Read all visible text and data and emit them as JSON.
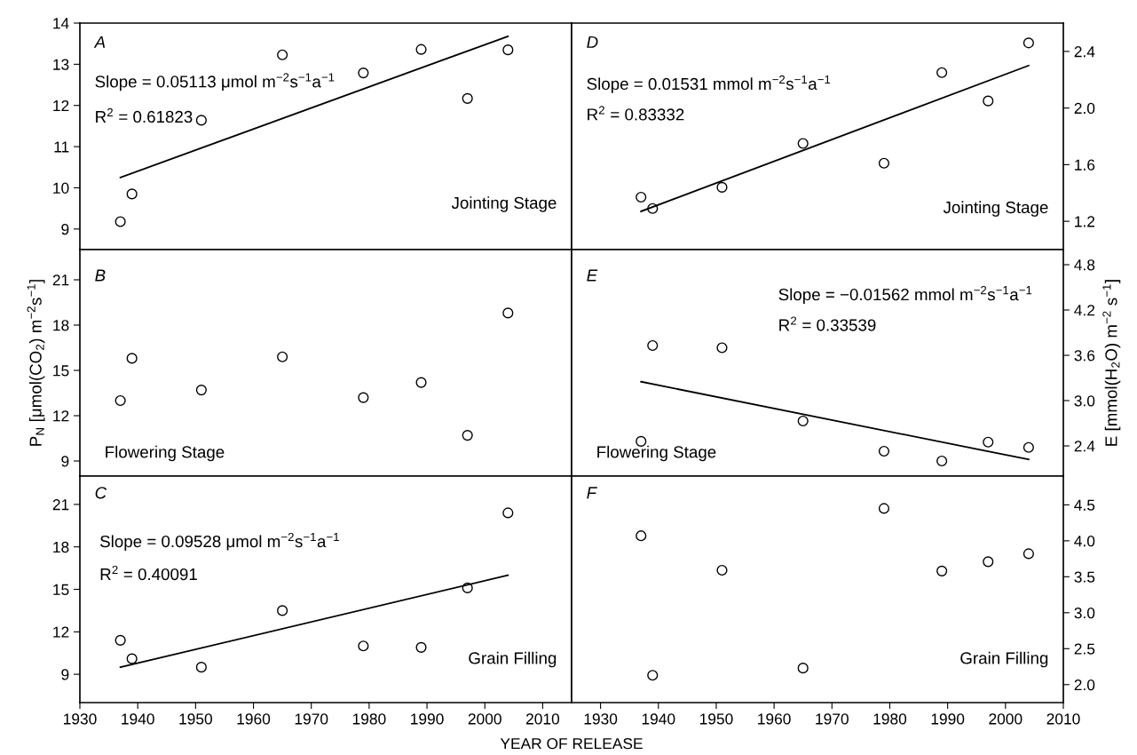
{
  "chart_data": [
    {
      "type": "scatter",
      "xlim": [
        1930,
        2015
      ],
      "xticks": [
        1930,
        1940,
        1950,
        1960,
        1970,
        1980,
        1990,
        2000,
        2010
      ],
      "ylim": [
        8.5,
        14
      ],
      "yticks": [
        9,
        10,
        11,
        12,
        13,
        14
      ],
      "tick_labels": "y",
      "grid": false,
      "series": [
        {
          "marker": "circle",
          "color": "#000000",
          "x": [
            1937,
            1939,
            1951,
            1965,
            1979,
            1989,
            1997,
            2004
          ],
          "values": [
            9.18,
            9.85,
            11.64,
            13.23,
            12.79,
            13.36,
            12.17,
            13.35
          ]
        },
        {
          "type": "line",
          "color": "#000000",
          "x": [
            1937,
            2004
          ],
          "values": [
            10.25,
            13.68
          ]
        }
      ],
      "annotations": [
        "A",
        "Slope = 0.05113 μmol m$^{−2}$s$^{−1}$a$^{−1}$",
        "R$^{2}$ = 0.61823",
        "Jointing Stage"
      ]
    },
    {
      "type": "scatter",
      "xlim": [
        1925,
        2010
      ],
      "xticks": [
        1930,
        1940,
        1950,
        1960,
        1970,
        1980,
        1990,
        2000,
        2010
      ],
      "ylim": [
        1.0,
        2.6
      ],
      "yticks": [
        {
          "value": 1.2,
          "label": "1.2"
        },
        {
          "value": 1.6,
          "label": "1.6"
        },
        {
          "value": 2.0,
          "label": "2.0"
        },
        {
          "value": 2.4,
          "label": "2.4"
        }
      ],
      "tick_labels": "y",
      "grid": false,
      "series": [
        {
          "marker": "circle",
          "color": "#000000",
          "x": [
            1937,
            1939,
            1951,
            1965,
            1979,
            1989,
            1997,
            2004
          ],
          "values": [
            1.37,
            1.29,
            1.44,
            1.75,
            1.61,
            2.25,
            2.05,
            2.46
          ]
        },
        {
          "type": "line",
          "color": "#000000",
          "x": [
            1937,
            2004
          ],
          "values": [
            1.27,
            2.3
          ]
        }
      ],
      "annotations": [
        "D",
        "Slope = 0.01531 mmol m$^{−2}$s$^{−1}$a$^{−1}$",
        "R$^{2}$ = 0.83332",
        "Jointing Stage"
      ]
    },
    {
      "type": "scatter",
      "xlim": [
        1930,
        2015
      ],
      "xticks": [
        1930,
        1940,
        1950,
        1960,
        1970,
        1980,
        1990,
        2000,
        2010
      ],
      "ylim": [
        8,
        23
      ],
      "yticks": [
        9,
        12,
        15,
        18,
        21
      ],
      "tick_labels": "y",
      "grid": false,
      "marker": "circle",
      "ylabel": "P$_{N}$ [μmol(CO$_{2}$) m$^{−2}$s$^{−1}$]",
      "series": [
        {
          "color": "#000000",
          "x": [
            1937,
            1939,
            1951,
            1965,
            1979,
            1989,
            1997,
            2004
          ],
          "values": [
            13.0,
            15.8,
            13.7,
            15.9,
            13.2,
            14.2,
            10.7,
            18.8
          ]
        }
      ],
      "annotations": [
        "B",
        "Flowering Stage"
      ]
    },
    {
      "type": "scatter",
      "xlim": [
        1925,
        2010
      ],
      "xticks": [
        1930,
        1940,
        1950,
        1960,
        1970,
        1980,
        1990,
        2000,
        2010
      ],
      "ylim": [
        2.0,
        5.0
      ],
      "yticks": [
        {
          "value": 2.4,
          "label": "2.4"
        },
        {
          "value": 3.0,
          "label": "3.0"
        },
        {
          "value": 3.6,
          "label": "3.6"
        },
        {
          "value": 4.2,
          "label": "4.2"
        },
        {
          "value": 4.8,
          "label": "4.8"
        }
      ],
      "tick_labels": "y",
      "grid": false,
      "ylabel": "E [mmol(H$_{2}$O) m$^{−2}$ s$^{−1}$]",
      "series": [
        {
          "marker": "circle",
          "color": "#000000",
          "x": [
            1937,
            1939,
            1951,
            1965,
            1979,
            1989,
            1997,
            2004
          ],
          "values": [
            2.46,
            3.73,
            3.7,
            2.73,
            2.33,
            2.2,
            2.45,
            2.38
          ]
        },
        {
          "type": "line",
          "color": "#000000",
          "x": [
            1937,
            2004
          ],
          "values": [
            3.25,
            2.22
          ]
        }
      ],
      "annotations": [
        "E",
        "Slope = −0.01562 mmol m$^{−2}$s$^{−1}$a$^{−1}$",
        "R$^{2}$ = 0.33539",
        "Flowering Stage"
      ]
    },
    {
      "type": "scatter",
      "xlim": [
        1930,
        2015
      ],
      "xticks": [
        1930,
        1940,
        1950,
        1960,
        1970,
        1980,
        1990,
        2000,
        2010
      ],
      "ylim": [
        7,
        23
      ],
      "yticks": [
        9,
        12,
        15,
        18,
        21
      ],
      "grid": false,
      "xlabel": "YEAR OF RELEASE",
      "series": [
        {
          "marker": "circle",
          "color": "#000000",
          "x": [
            1937,
            1939,
            1951,
            1965,
            1979,
            1989,
            1997,
            2004
          ],
          "values": [
            11.4,
            10.1,
            9.5,
            13.5,
            11.0,
            10.9,
            15.1,
            20.4
          ]
        },
        {
          "type": "line",
          "color": "#000000",
          "x": [
            1937,
            2004
          ],
          "values": [
            9.5,
            16.0
          ]
        }
      ],
      "annotations": [
        "C",
        "Slope = 0.09528 μmol m$^{−2}$s$^{−1}$a$^{−1}$",
        "R$^{2}$ = 0.40091",
        "Grain Filling"
      ]
    },
    {
      "type": "scatter",
      "xlim": [
        1925,
        2010
      ],
      "xticks": [
        1930,
        1940,
        1950,
        1960,
        1970,
        1980,
        1990,
        2000,
        2010
      ],
      "ylim": [
        1.75,
        4.9
      ],
      "yticks": [
        {
          "value": 2.0,
          "label": "2.0"
        },
        {
          "value": 2.5,
          "label": "2.5"
        },
        {
          "value": 3.0,
          "label": "3.0"
        },
        {
          "value": 3.5,
          "label": "3.5"
        },
        {
          "value": 4.0,
          "label": "4.0"
        },
        {
          "value": 4.5,
          "label": "4.5"
        }
      ],
      "grid": false,
      "marker": "circle",
      "series": [
        {
          "color": "#000000",
          "x": [
            1937,
            1939,
            1951,
            1965,
            1979,
            1989,
            1997,
            2004
          ],
          "values": [
            4.07,
            2.13,
            3.59,
            2.23,
            4.45,
            3.58,
            3.71,
            3.82
          ]
        }
      ],
      "annotations": [
        "F",
        "Grain Filling"
      ]
    }
  ]
}
